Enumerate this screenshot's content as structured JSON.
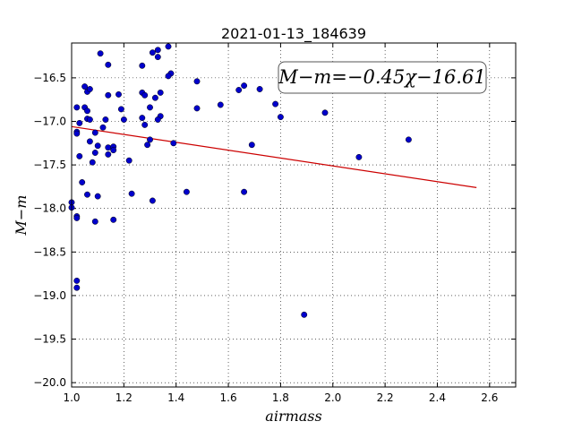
{
  "chart_data": {
    "type": "scatter",
    "title": "2021-01-13_184639",
    "xlabel": "airmass",
    "ylabel": "M−m",
    "xlim": [
      1.0,
      2.7
    ],
    "ylim": [
      -20.05,
      -16.1
    ],
    "y_inverted": false,
    "grid": true,
    "x_ticks": [
      1.0,
      1.2,
      1.4,
      1.6,
      1.8,
      2.0,
      2.2,
      2.4,
      2.6
    ],
    "x_tick_labels": [
      "1.0",
      "1.2",
      "1.4",
      "1.6",
      "1.8",
      "2.0",
      "2.2",
      "2.4",
      "2.6"
    ],
    "y_ticks": [
      -16.5,
      -17.0,
      -17.5,
      -18.0,
      -18.5,
      -19.0,
      -19.5,
      -20.0
    ],
    "y_tick_labels": [
      "−16.5",
      "−17.0",
      "−17.5",
      "−18.0",
      "−18.5",
      "−19.0",
      "−19.5",
      "−20.0"
    ],
    "annotation": "M−m=−0.45χ−16.61",
    "colors": {
      "points": "#0000cc",
      "fit": "#cc0000"
    },
    "series": [
      {
        "type": "scatter",
        "points": [
          [
            1.0,
            -17.93
          ],
          [
            1.0,
            -17.99
          ],
          [
            1.02,
            -17.12
          ],
          [
            1.02,
            -17.14
          ],
          [
            1.02,
            -16.84
          ],
          [
            1.03,
            -17.02
          ],
          [
            1.03,
            -17.4
          ],
          [
            1.04,
            -17.7
          ],
          [
            1.05,
            -16.84
          ],
          [
            1.05,
            -16.6
          ],
          [
            1.06,
            -16.88
          ],
          [
            1.06,
            -16.66
          ],
          [
            1.07,
            -16.63
          ],
          [
            1.06,
            -16.97
          ],
          [
            1.07,
            -16.98
          ],
          [
            1.07,
            -17.23
          ],
          [
            1.08,
            -17.47
          ],
          [
            1.09,
            -17.13
          ],
          [
            1.09,
            -17.36
          ],
          [
            1.1,
            -17.28
          ],
          [
            1.06,
            -17.84
          ],
          [
            1.1,
            -17.86
          ],
          [
            1.09,
            -18.15
          ],
          [
            1.02,
            -18.09
          ],
          [
            1.02,
            -18.11
          ],
          [
            1.02,
            -18.83
          ],
          [
            1.02,
            -18.91
          ],
          [
            1.11,
            -16.22
          ],
          [
            1.14,
            -16.35
          ],
          [
            1.14,
            -16.7
          ],
          [
            1.13,
            -16.98
          ],
          [
            1.12,
            -17.07
          ],
          [
            1.14,
            -17.3
          ],
          [
            1.14,
            -17.38
          ],
          [
            1.16,
            -17.29
          ],
          [
            1.16,
            -17.33
          ],
          [
            1.16,
            -18.13
          ],
          [
            1.18,
            -16.69
          ],
          [
            1.19,
            -16.86
          ],
          [
            1.2,
            -16.98
          ],
          [
            1.22,
            -17.45
          ],
          [
            1.23,
            -17.83
          ],
          [
            1.27,
            -16.36
          ],
          [
            1.27,
            -16.67
          ],
          [
            1.28,
            -16.7
          ],
          [
            1.27,
            -16.96
          ],
          [
            1.28,
            -17.04
          ],
          [
            1.3,
            -16.84
          ],
          [
            1.3,
            -17.21
          ],
          [
            1.29,
            -17.27
          ],
          [
            1.31,
            -16.21
          ],
          [
            1.33,
            -16.18
          ],
          [
            1.33,
            -16.26
          ],
          [
            1.32,
            -16.73
          ],
          [
            1.34,
            -16.67
          ],
          [
            1.34,
            -16.94
          ],
          [
            1.33,
            -16.98
          ],
          [
            1.31,
            -17.91
          ],
          [
            1.37,
            -16.14
          ],
          [
            1.38,
            -16.45
          ],
          [
            1.37,
            -16.48
          ],
          [
            1.39,
            -17.25
          ],
          [
            1.44,
            -17.81
          ],
          [
            1.48,
            -16.54
          ],
          [
            1.48,
            -16.85
          ],
          [
            1.57,
            -16.81
          ],
          [
            1.64,
            -16.64
          ],
          [
            1.66,
            -16.59
          ],
          [
            1.66,
            -17.81
          ],
          [
            1.69,
            -17.27
          ],
          [
            1.72,
            -16.63
          ],
          [
            1.78,
            -16.8
          ],
          [
            1.8,
            -16.95
          ],
          [
            1.89,
            -19.22
          ],
          [
            1.97,
            -16.9
          ],
          [
            2.1,
            -17.41
          ],
          [
            2.29,
            -17.21
          ]
        ]
      },
      {
        "type": "line",
        "points": [
          [
            1.0,
            -17.06
          ],
          [
            2.55,
            -17.76
          ]
        ]
      }
    ]
  }
}
